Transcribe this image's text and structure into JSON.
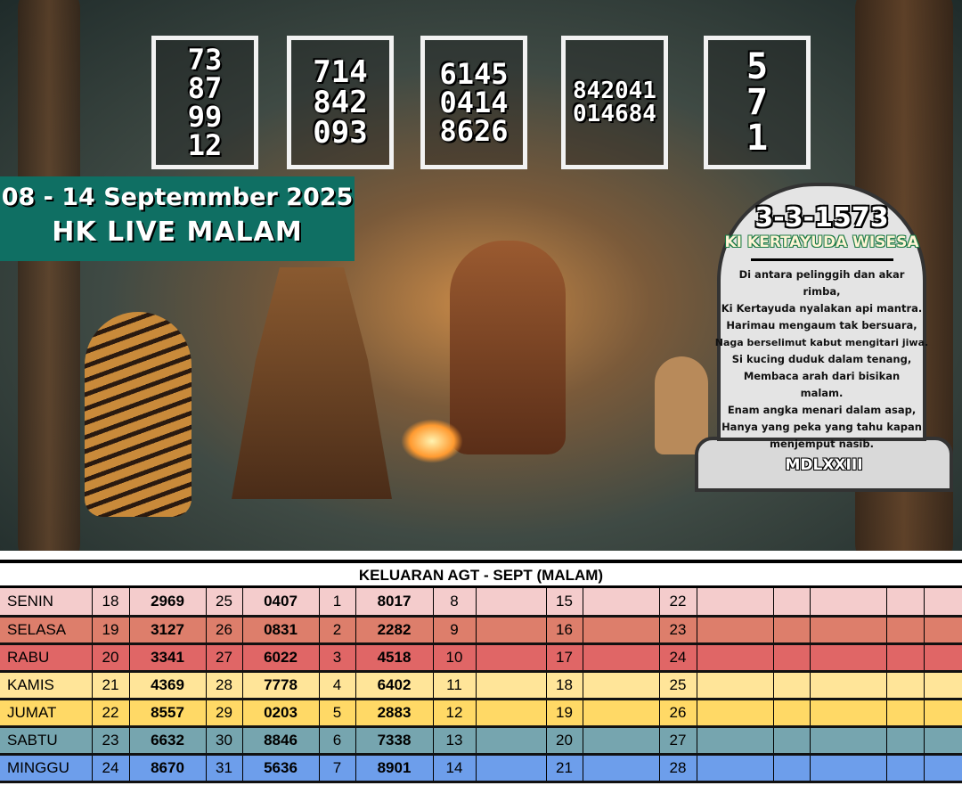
{
  "poster": {
    "number_boxes": [
      [
        "73",
        "87",
        "99",
        "12"
      ],
      [
        "714",
        "842",
        "093"
      ],
      [
        "6145",
        "0414",
        "8626"
      ],
      [
        "842041",
        "014684"
      ],
      [
        "5",
        "7",
        "1"
      ]
    ],
    "date_range": "08 - 14 Septemmber 2025",
    "market": "HK LIVE MALAM",
    "tombstone": {
      "date": "3-3-1573",
      "name": "KI KERTAYUDA WISESA",
      "poem": [
        "Di antara pelinggih dan akar rimba,",
        "Ki Kertayuda nyalakan api mantra.",
        "Harimau mengaum tak bersuara,",
        "Naga berselimut kabut mengitari jiwa.",
        "Si kucing duduk dalam tenang,",
        "Membaca arah dari bisikan malam.",
        "Enam angka menari dalam asap,",
        "Hanya yang peka yang tahu kapan",
        "menjemput nasib."
      ],
      "roman": "MDLXXIII"
    }
  },
  "table": {
    "title": "KELUARAN AGT - SEPT (MALAM)",
    "rows": [
      {
        "day": "SENIN",
        "color": "#f4cccc",
        "cells": [
          "18",
          "2969",
          "25",
          "0407",
          "1",
          "8017",
          "8",
          "",
          "15",
          "",
          "22",
          "",
          "",
          "",
          "",
          "",
          ""
        ]
      },
      {
        "day": "SELASA",
        "color": "#dd7e6b",
        "cells": [
          "19",
          "3127",
          "26",
          "0831",
          "2",
          "2282",
          "9",
          "",
          "16",
          "",
          "23",
          "",
          "",
          "",
          "",
          "",
          ""
        ]
      },
      {
        "day": "RABU",
        "color": "#e06666",
        "cells": [
          "20",
          "3341",
          "27",
          "6022",
          "3",
          "4518",
          "10",
          "",
          "17",
          "",
          "24",
          "",
          "",
          "",
          "",
          "",
          ""
        ]
      },
      {
        "day": "KAMIS",
        "color": "#ffe599",
        "cells": [
          "21",
          "4369",
          "28",
          "7778",
          "4",
          "6402",
          "11",
          "",
          "18",
          "",
          "25",
          "",
          "",
          "",
          "",
          "",
          ""
        ]
      },
      {
        "day": "JUMAT",
        "color": "#ffd966",
        "cells": [
          "22",
          "8557",
          "29",
          "0203",
          "5",
          "2883",
          "12",
          "",
          "19",
          "",
          "26",
          "",
          "",
          "",
          "",
          "",
          ""
        ]
      },
      {
        "day": "SABTU",
        "color": "#76a5af",
        "cells": [
          "23",
          "6632",
          "30",
          "8846",
          "6",
          "7338",
          "13",
          "",
          "20",
          "",
          "27",
          "",
          "",
          "",
          "",
          "",
          ""
        ]
      },
      {
        "day": "MINGGU",
        "color": "#6d9eeb",
        "cells": [
          "24",
          "8670",
          "31",
          "5636",
          "7",
          "8901",
          "14",
          "",
          "21",
          "",
          "28",
          "",
          "",
          "",
          "",
          "",
          ""
        ]
      }
    ]
  }
}
